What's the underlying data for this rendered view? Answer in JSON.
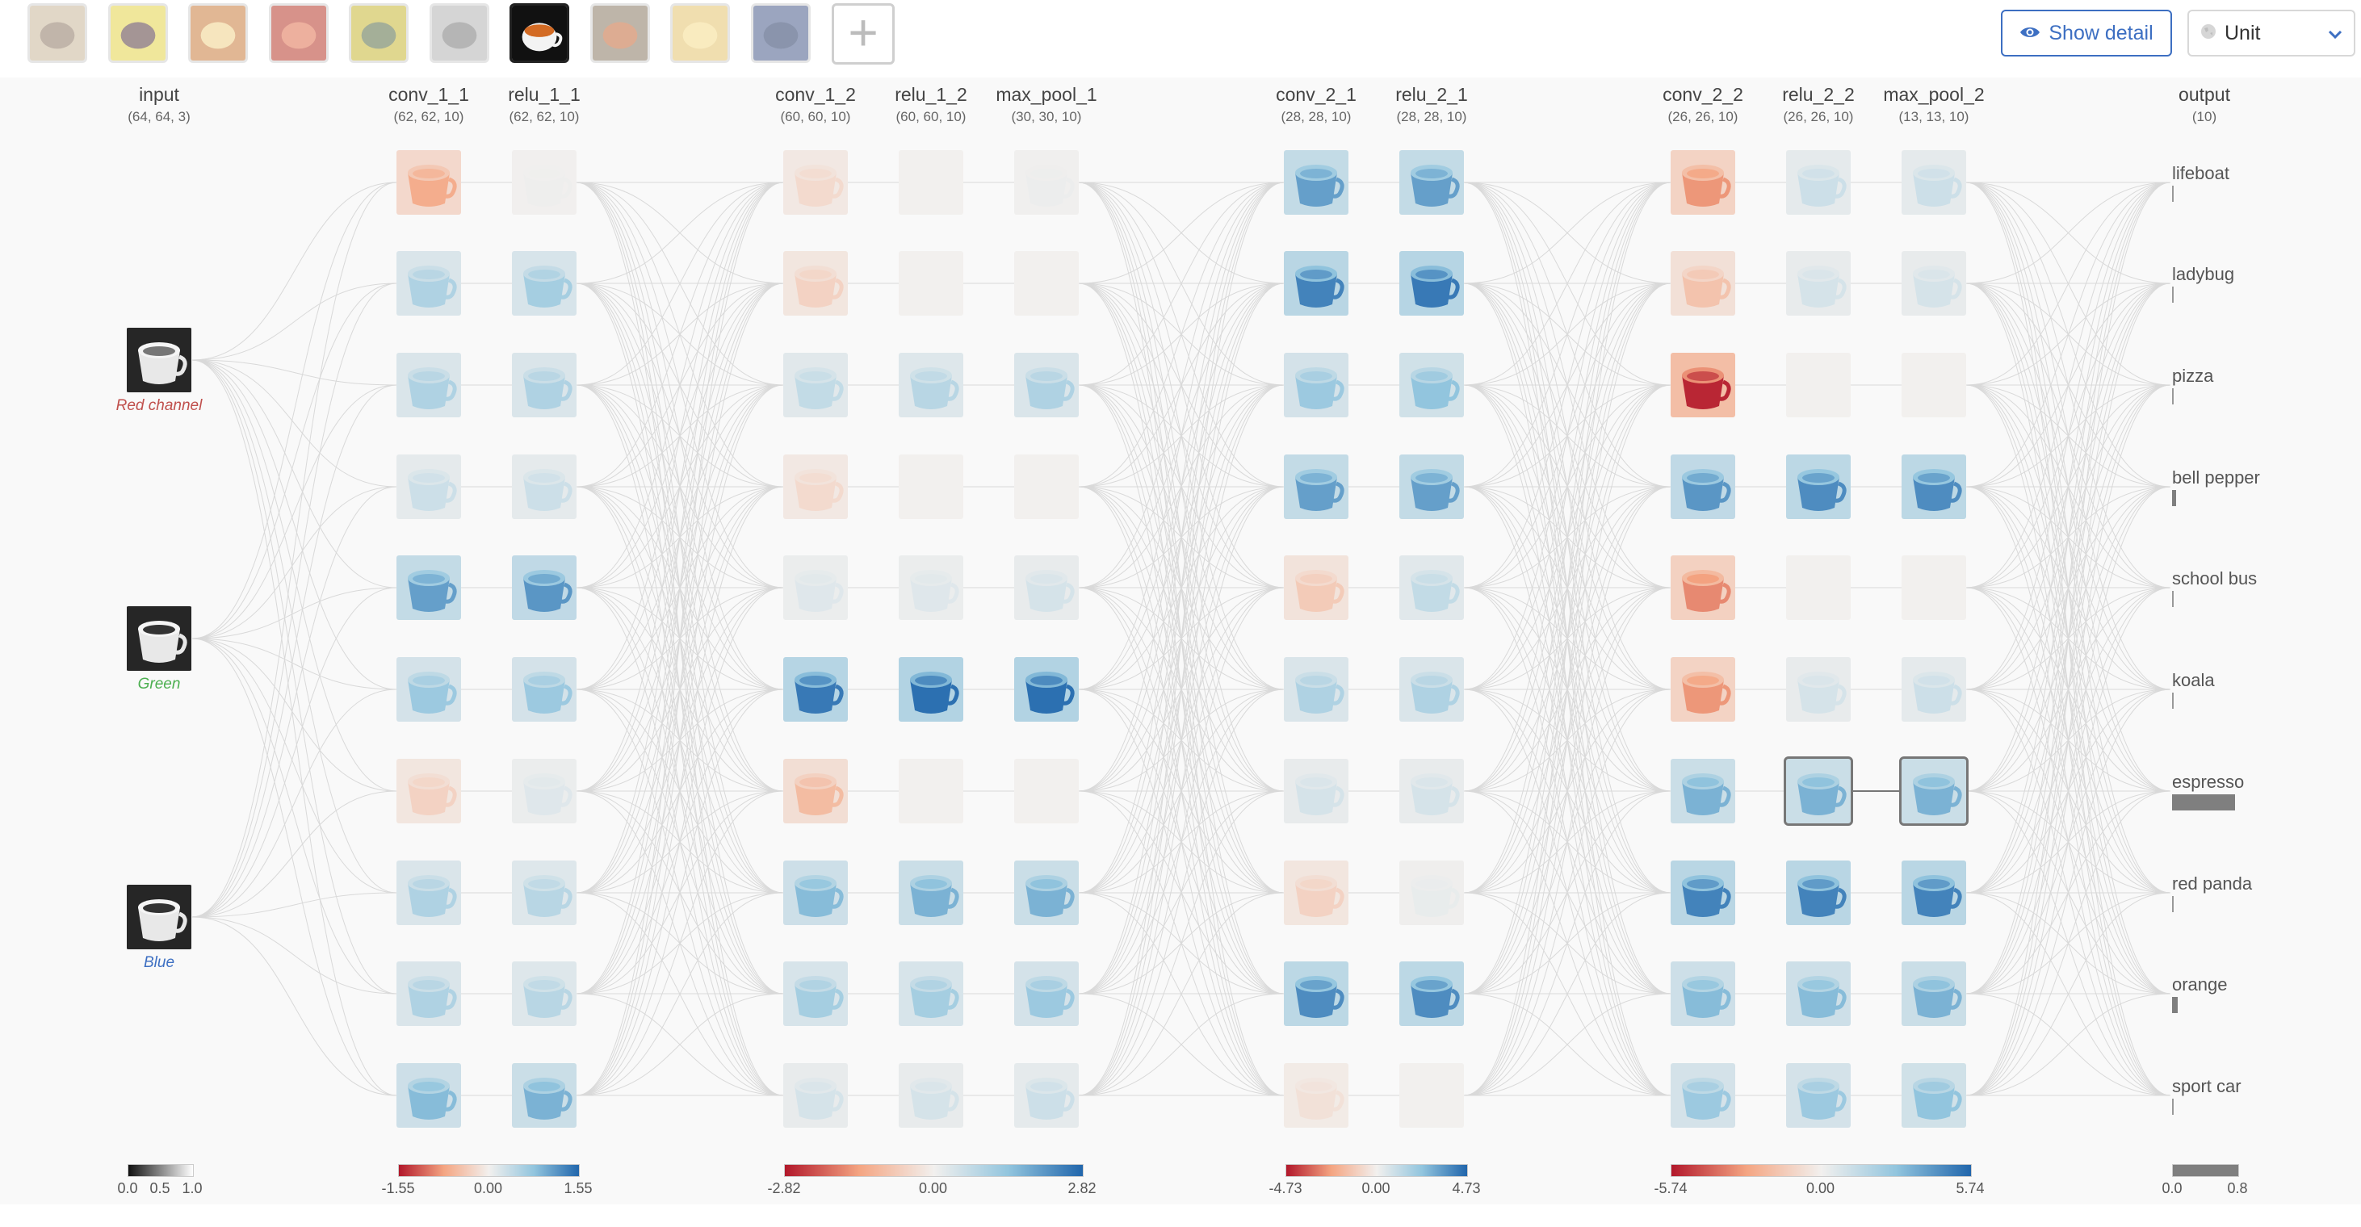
{
  "toolbar": {
    "thumbnails": [
      {
        "name": "lifeboat",
        "bg": "#c9b79a",
        "fg": "#8f7a66",
        "selected": false
      },
      {
        "name": "ladybug",
        "bg": "#e5d44a",
        "fg": "#5a3f3f",
        "selected": false
      },
      {
        "name": "pizza",
        "bg": "#c97d3d",
        "fg": "#f0d08a",
        "selected": false
      },
      {
        "name": "bell pepper",
        "bg": "#b83a2b",
        "fg": "#e07050",
        "selected": false
      },
      {
        "name": "school bus",
        "bg": "#c7b735",
        "fg": "#5b6e44",
        "selected": false
      },
      {
        "name": "koala",
        "bg": "#b4b4b4",
        "fg": "#7a7a7a",
        "selected": false
      },
      {
        "name": "espresso",
        "bg": "#111111",
        "fg": "#d36b24",
        "selected": true
      },
      {
        "name": "red panda",
        "bg": "#8a7a63",
        "fg": "#c26a3a",
        "selected": false
      },
      {
        "name": "orange",
        "bg": "#e5c46f",
        "fg": "#f5dc8c",
        "selected": false
      },
      {
        "name": "sport car",
        "bg": "#4a5d8c",
        "fg": "#2c3e6a",
        "selected": false
      }
    ],
    "add_label": "+",
    "show_detail_label": "Show detail",
    "unit_label": "Unit"
  },
  "layers": [
    {
      "name": "input",
      "shape": "(64, 64, 3)"
    },
    {
      "name": "conv_1_1",
      "shape": "(62, 62, 10)"
    },
    {
      "name": "relu_1_1",
      "shape": "(62, 62, 10)"
    },
    {
      "name": "conv_1_2",
      "shape": "(60, 60, 10)"
    },
    {
      "name": "relu_1_2",
      "shape": "(60, 60, 10)"
    },
    {
      "name": "max_pool_1",
      "shape": "(30, 30, 10)"
    },
    {
      "name": "conv_2_1",
      "shape": "(28, 28, 10)"
    },
    {
      "name": "relu_2_1",
      "shape": "(28, 28, 10)"
    },
    {
      "name": "conv_2_2",
      "shape": "(26, 26, 10)"
    },
    {
      "name": "relu_2_2",
      "shape": "(26, 26, 10)"
    },
    {
      "name": "max_pool_2",
      "shape": "(13, 13, 10)"
    },
    {
      "name": "output",
      "shape": "(10)"
    }
  ],
  "input_channels": [
    {
      "label": "Red channel",
      "color": "#c0504d"
    },
    {
      "label": "Green",
      "color": "#4caf50"
    },
    {
      "label": "Blue",
      "color": "#3d6fc2"
    }
  ],
  "outputs": [
    {
      "label": "lifeboat",
      "value": 0.0
    },
    {
      "label": "ladybug",
      "value": 0.01
    },
    {
      "label": "pizza",
      "value": 0.0
    },
    {
      "label": "bell pepper",
      "value": 0.05
    },
    {
      "label": "school bus",
      "value": 0.0
    },
    {
      "label": "koala",
      "value": 0.0
    },
    {
      "label": "espresso",
      "value": 0.78
    },
    {
      "label": "red panda",
      "value": 0.01
    },
    {
      "label": "orange",
      "value": 0.07
    },
    {
      "label": "sport car",
      "value": 0.0
    }
  ],
  "activations": {
    "conv_1_1": [
      -0.45,
      0.35,
      0.35,
      0.2,
      0.7,
      0.45,
      -0.2,
      0.35,
      0.35,
      0.55
    ],
    "relu_1_1": [
      0.02,
      0.4,
      0.35,
      0.2,
      0.75,
      0.45,
      0.1,
      0.3,
      0.3,
      0.6
    ],
    "conv_1_2": [
      -0.15,
      -0.2,
      0.25,
      -0.15,
      0.1,
      0.9,
      -0.35,
      0.55,
      0.4,
      0.15
    ],
    "relu_1_2": [
      0.0,
      0.0,
      0.3,
      0.0,
      0.1,
      0.95,
      0.0,
      0.6,
      0.4,
      0.15
    ],
    "max_pool_1": [
      0.03,
      0.0,
      0.35,
      0.0,
      0.15,
      0.95,
      0.0,
      0.6,
      0.45,
      0.2
    ],
    "conv_2_1": [
      0.7,
      0.85,
      0.45,
      0.7,
      -0.25,
      0.35,
      0.15,
      -0.2,
      0.8,
      -0.1
    ],
    "relu_2_1": [
      0.7,
      0.9,
      0.5,
      0.7,
      0.25,
      0.35,
      0.15,
      0.05,
      0.8,
      0.0
    ],
    "conv_2_2": [
      -0.55,
      -0.3,
      -0.95,
      0.75,
      -0.6,
      -0.55,
      0.6,
      0.85,
      0.55,
      0.45
    ],
    "relu_2_2": [
      0.2,
      0.15,
      0.0,
      0.8,
      0.0,
      0.15,
      0.6,
      0.85,
      0.55,
      0.45
    ],
    "max_pool_2": [
      0.2,
      0.15,
      0.0,
      0.8,
      0.0,
      0.2,
      0.6,
      0.85,
      0.6,
      0.5
    ]
  },
  "selected_units": [
    {
      "layer": "relu_2_2",
      "index": 6
    },
    {
      "layer": "max_pool_2",
      "index": 6
    }
  ],
  "legends": [
    {
      "ticks": [
        "0.0",
        "0.5",
        "1.0"
      ],
      "type": "gray"
    },
    {
      "ticks": [
        "-1.55",
        "0.00",
        "1.55"
      ],
      "type": "diverging"
    },
    {
      "ticks": [
        "-2.82",
        "0.00",
        "2.82"
      ],
      "type": "diverging"
    },
    {
      "ticks": [
        "-4.73",
        "0.00",
        "4.73"
      ],
      "type": "diverging"
    },
    {
      "ticks": [
        "-5.74",
        "0.00",
        "5.74"
      ],
      "type": "diverging"
    },
    {
      "ticks": [
        "0.0",
        "0.8"
      ],
      "type": "output"
    }
  ],
  "colors": {
    "accent": "#3d6fc2",
    "negative": "#b2182b",
    "neutral": "#f2f0ee",
    "positive": "#2166ac",
    "edge": "#d9d9d9",
    "output_bar": "#7f7f7f"
  }
}
